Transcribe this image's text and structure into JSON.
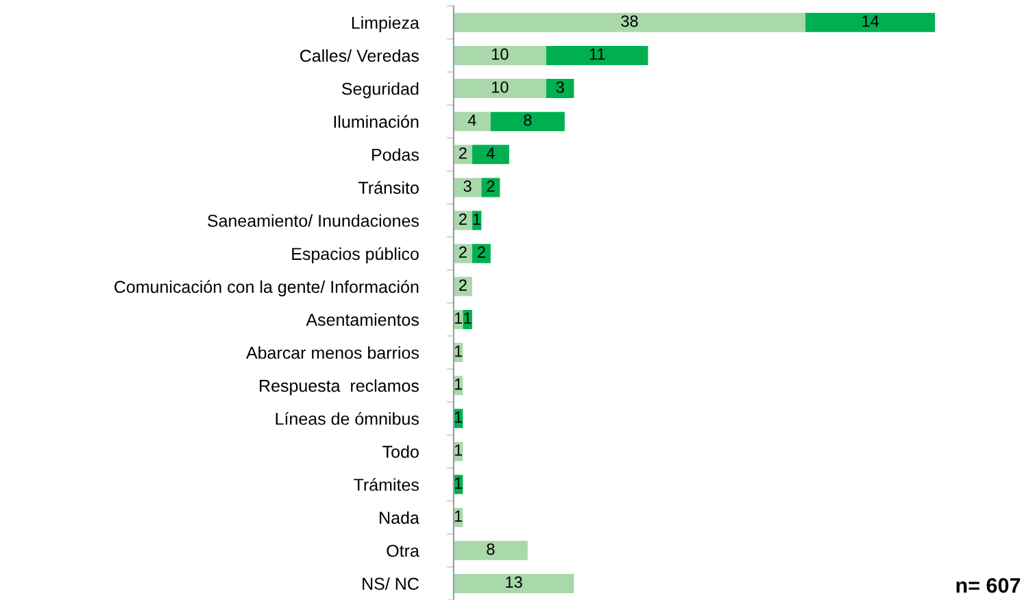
{
  "chart_data": {
    "type": "bar",
    "orientation": "horizontal",
    "stacked": true,
    "data_labels": true,
    "grid": false,
    "legend": false,
    "categories": [
      "Limpieza",
      "Calles/ Veredas",
      "Seguridad",
      "Iluminación",
      "Podas",
      "Tránsito",
      "Saneamiento/ Inundaciones",
      "Espacios público",
      "Comunicación con la gente/ Información",
      "Asentamientos",
      "Abarcar menos barrios",
      "Respuesta  reclamos",
      "Líneas de ómnibus",
      "Todo",
      "Trámites",
      "Nada",
      "Otra",
      "NS/ NC"
    ],
    "series": [
      {
        "color": "#a9d8ab",
        "values": [
          38,
          10,
          10,
          4,
          2,
          3,
          2,
          2,
          2,
          1,
          1,
          1,
          null,
          1,
          null,
          1,
          8,
          13
        ]
      },
      {
        "color": "#00b050",
        "values": [
          14,
          11,
          3,
          8,
          4,
          2,
          1,
          2,
          null,
          1,
          null,
          null,
          1,
          null,
          1,
          null,
          null,
          null
        ]
      }
    ],
    "annotations": [
      "n= 607"
    ]
  }
}
